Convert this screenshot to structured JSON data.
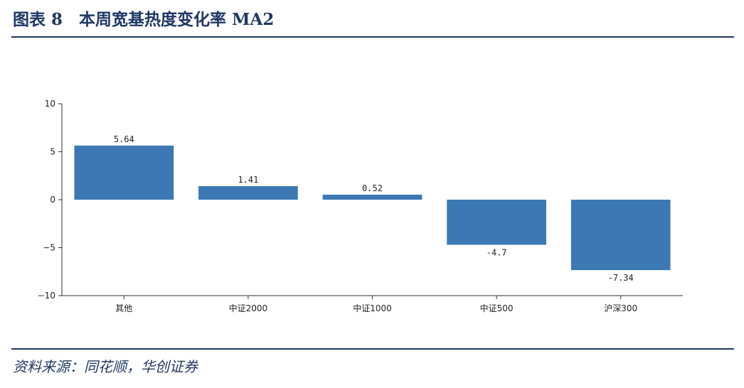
{
  "header": {
    "title": "图表 8　本周宽基热度变化率 MA2"
  },
  "footer": {
    "source": "资料来源：同花顺，华创证券"
  },
  "colors": {
    "bar": "#3b78b4",
    "heading": "#1f3864"
  },
  "chart_data": {
    "type": "bar",
    "title": "",
    "xlabel": "",
    "ylabel": "",
    "categories": [
      "其他",
      "中证2000",
      "中证1000",
      "中证500",
      "沪深300"
    ],
    "values": [
      5.64,
      1.41,
      0.52,
      -4.7,
      -7.34
    ],
    "value_labels": [
      "5.64",
      "1.41",
      "0.52",
      "-4.7",
      "-7.34"
    ],
    "ylim": [
      -10,
      10
    ],
    "yticks": [
      10,
      5,
      0,
      -5,
      -10
    ],
    "ytick_labels": [
      "10",
      "5",
      "0",
      "−5",
      "−10"
    ],
    "grid": false,
    "legend": "none"
  }
}
